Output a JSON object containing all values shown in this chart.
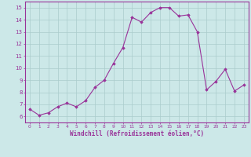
{
  "x": [
    0,
    1,
    2,
    3,
    4,
    5,
    6,
    7,
    8,
    9,
    10,
    11,
    12,
    13,
    14,
    15,
    16,
    17,
    18,
    19,
    20,
    21,
    22,
    23
  ],
  "y": [
    6.6,
    6.1,
    6.3,
    6.8,
    7.1,
    6.8,
    7.3,
    8.4,
    9.0,
    10.4,
    11.7,
    14.2,
    13.8,
    14.6,
    15.0,
    15.0,
    14.3,
    14.4,
    13.0,
    8.2,
    8.9,
    9.9,
    8.1,
    8.6
  ],
  "line_color": "#993399",
  "marker": "D",
  "marker_size": 1.8,
  "bg_color": "#cce8e8",
  "grid_color": "#aacccc",
  "xlabel": "Windchill (Refroidissement éolien,°C)",
  "xlabel_color": "#993399",
  "tick_color": "#993399",
  "xlim": [
    -0.5,
    23.5
  ],
  "ylim": [
    5.5,
    15.5
  ],
  "yticks": [
    6,
    7,
    8,
    9,
    10,
    11,
    12,
    13,
    14,
    15
  ],
  "xticks": [
    0,
    1,
    2,
    3,
    4,
    5,
    6,
    7,
    8,
    9,
    10,
    11,
    12,
    13,
    14,
    15,
    16,
    17,
    18,
    19,
    20,
    21,
    22,
    23
  ],
  "spine_color": "#993399",
  "line_width": 0.8
}
